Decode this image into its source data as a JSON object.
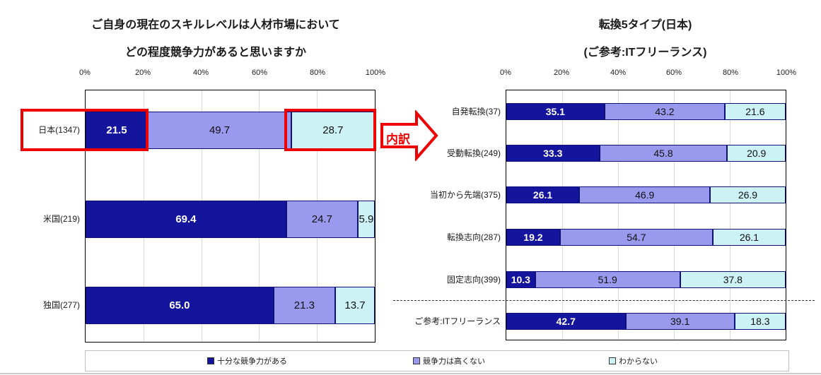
{
  "colors": {
    "navy": "#14149c",
    "periwinkle": "#9999ee",
    "cyan": "#ccf2f5",
    "highlight_red": "#ee0000",
    "grid": "#d9d9d9"
  },
  "legend": {
    "items": [
      {
        "label": "十分な競争力がある",
        "color": "#14149c"
      },
      {
        "label": "競争力は高くない",
        "color": "#9999ee"
      },
      {
        "label": "わからない",
        "color": "#ccf2f5"
      }
    ]
  },
  "annotation": {
    "arrow_label": "内訳"
  },
  "chart_data": [
    {
      "type": "bar",
      "orientation": "horizontal",
      "stacked": true,
      "title_lines": [
        "ご自身の現在のスキルレベルは人材市場において",
        "どの程度競争力があると思いますか"
      ],
      "x_ticks": [
        "0%",
        "20%",
        "40%",
        "60%",
        "80%",
        "100%"
      ],
      "xlim": [
        0,
        100
      ],
      "grid": true,
      "series_names": [
        "十分な競争力がある",
        "競争力は高くない",
        "わからない"
      ],
      "categories": [
        "日本(1347)",
        "米国(219)",
        "独国(277)"
      ],
      "rows": [
        [
          21.5,
          49.7,
          28.7
        ],
        [
          69.4,
          24.7,
          5.9
        ],
        [
          65.0,
          21.3,
          13.7
        ]
      ],
      "highlighted": {
        "category": "日本(1347)",
        "segment_indices": [
          0,
          2
        ],
        "style": "red-box"
      }
    },
    {
      "type": "bar",
      "orientation": "horizontal",
      "stacked": true,
      "title_lines": [
        "転換5タイプ(日本)",
        "(ご参考:ITフリーランス)"
      ],
      "x_ticks": [
        "0%",
        "20%",
        "40%",
        "60%",
        "80%",
        "100%"
      ],
      "xlim": [
        0,
        100
      ],
      "grid": true,
      "series_names": [
        "十分な競争力がある",
        "競争力は高くない",
        "わからない"
      ],
      "categories": [
        "自発転換(37)",
        "受動転換(249)",
        "当初から先端(375)",
        "転換志向(287)",
        "固定志向(399)",
        "ご参考:ITフリーランス"
      ],
      "rows": [
        [
          35.1,
          43.2,
          21.6
        ],
        [
          33.3,
          45.8,
          20.9
        ],
        [
          26.1,
          46.9,
          26.9
        ],
        [
          19.2,
          54.7,
          26.1
        ],
        [
          10.3,
          51.9,
          37.8
        ],
        [
          42.7,
          39.1,
          18.3
        ]
      ],
      "separator_before_last_row": true
    }
  ]
}
